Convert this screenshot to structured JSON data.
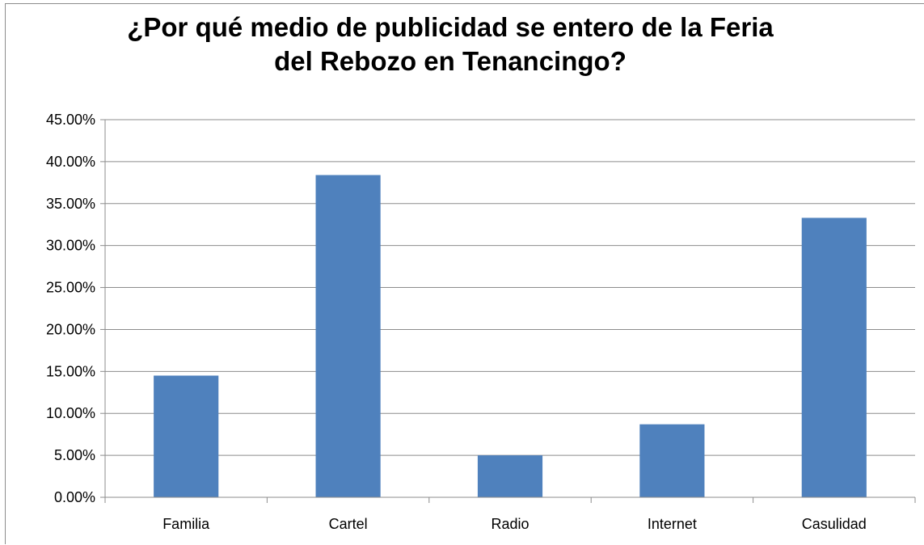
{
  "chart_data": {
    "type": "bar",
    "title_lines": [
      "¿Por qué medio de publicidad se entero de la Feria",
      "del Rebozo en Tenancingo?"
    ],
    "categories": [
      "Familia",
      "Cartel",
      "Radio",
      "Internet",
      "Casulidad"
    ],
    "values": [
      0.145,
      0.384,
      0.05,
      0.087,
      0.333
    ],
    "ylim": [
      0,
      0.45
    ],
    "yticks": [
      0,
      0.05,
      0.1,
      0.15,
      0.2,
      0.25,
      0.3,
      0.35,
      0.4,
      0.45
    ],
    "ytick_labels": [
      "0.00%",
      "5.00%",
      "10.00%",
      "15.00%",
      "20.00%",
      "25.00%",
      "30.00%",
      "35.00%",
      "40.00%",
      "45.00%"
    ],
    "grid": true,
    "legend": "none",
    "bar_color": "#4f81bd"
  }
}
